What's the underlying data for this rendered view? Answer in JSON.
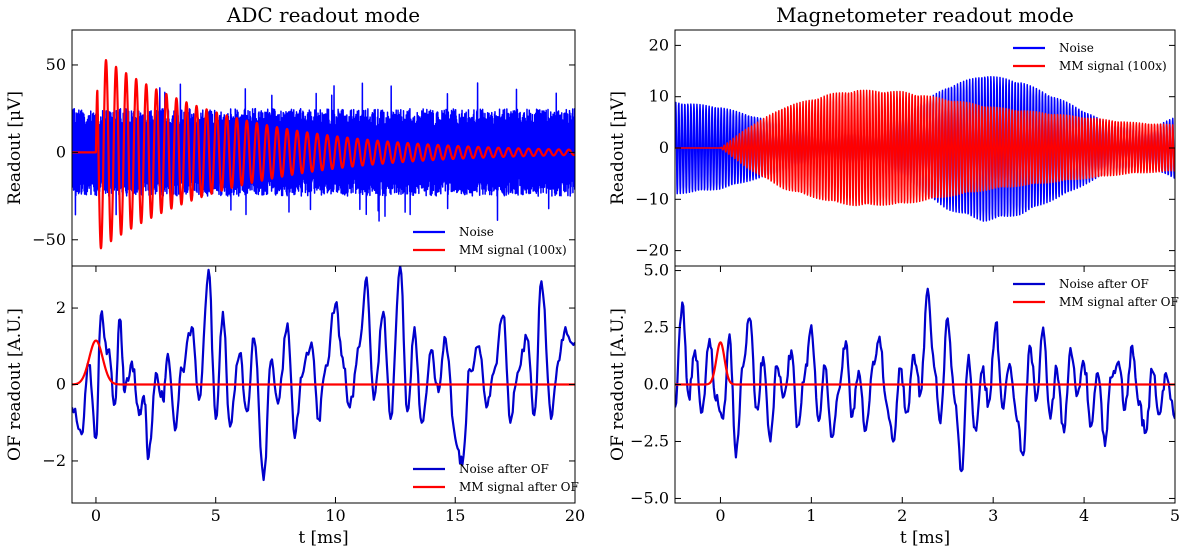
{
  "chart_data": [
    {
      "panel": "ADC top",
      "type": "line",
      "title": "ADC readout mode",
      "xlabel": "",
      "ylabel": "Readout [μV]",
      "xlim": [
        -1,
        20
      ],
      "ylim": [
        -65,
        70
      ],
      "yticks": [
        -50,
        0,
        50
      ],
      "ytick_labels": [
        "−50",
        "0",
        "50"
      ],
      "legend": "lower-right",
      "series": [
        {
          "name": "Noise",
          "color": "#0000ff",
          "kind": "noise",
          "amplitude": 25,
          "max_abs": 40,
          "x_range": [
            -1,
            20
          ]
        },
        {
          "name": "MM signal (100x)",
          "color": "#ff0000",
          "kind": "damped-sine",
          "onset": 0,
          "amplitude": 57,
          "period_ms": 0.42,
          "decay_ms": 5.5
        }
      ]
    },
    {
      "panel": "ADC bottom",
      "type": "line",
      "title": "",
      "xlabel": "t [ms]",
      "ylabel": "OF readout [A.U.]",
      "xlim": [
        -1,
        20
      ],
      "ylim": [
        -3.1,
        3.1
      ],
      "xticks": [
        0,
        5,
        10,
        15,
        20
      ],
      "xtick_labels": [
        "0",
        "5",
        "10",
        "15",
        "20"
      ],
      "yticks": [
        -2,
        0,
        2
      ],
      "ytick_labels": [
        "−2",
        "0",
        "2"
      ],
      "legend": "lower-right",
      "series": [
        {
          "name": "Noise after OF",
          "color": "#0000cc",
          "x": [
            -1.0,
            -0.6,
            -0.3,
            0.0,
            0.2,
            0.5,
            0.8,
            1.0,
            1.2,
            1.5,
            1.8,
            2.0,
            2.2,
            2.5,
            2.8,
            3.0,
            3.3,
            3.6,
            4.0,
            4.3,
            4.7,
            5.0,
            5.3,
            5.6,
            6.0,
            6.3,
            6.6,
            7.0,
            7.3,
            7.6,
            8.0,
            8.3,
            8.6,
            9.0,
            9.3,
            9.6,
            10.0,
            10.3,
            10.6,
            11.0,
            11.3,
            11.6,
            12.0,
            12.3,
            12.7,
            13.0,
            13.3,
            13.6,
            14.0,
            14.3,
            14.6,
            15.0,
            15.3,
            15.6,
            16.0,
            16.3,
            16.6,
            17.0,
            17.3,
            17.6,
            18.0,
            18.3,
            18.6,
            19.0,
            19.3,
            19.6,
            20.0
          ],
          "y": [
            -0.6,
            -1.3,
            0.5,
            -1.4,
            1.8,
            0.9,
            -0.5,
            1.7,
            -0.2,
            0.6,
            -0.8,
            -0.3,
            -1.9,
            0.3,
            -0.4,
            0.8,
            -1.2,
            0.4,
            1.5,
            -0.4,
            3.0,
            -0.9,
            1.9,
            -1.1,
            0.8,
            -0.7,
            1.2,
            -2.5,
            0.6,
            -0.5,
            1.6,
            -1.4,
            0.2,
            1.1,
            -0.9,
            0.5,
            2.1,
            0.7,
            -0.6,
            1.0,
            2.8,
            -0.4,
            1.9,
            -0.9,
            3.1,
            -0.7,
            1.5,
            -1.0,
            0.9,
            -0.2,
            1.2,
            -1.4,
            -2.1,
            0.4,
            1.0,
            -0.6,
            0.3,
            1.8,
            -1.0,
            0.3,
            1.2,
            -0.8,
            2.7,
            -0.9,
            0.6,
            1.5,
            1.1
          ]
        },
        {
          "name": "MM signal after OF",
          "color": "#ff0000",
          "kind": "gaussian",
          "center": 0.0,
          "peak": 1.15,
          "sigma_ms": 0.28
        }
      ]
    },
    {
      "panel": "Magnetometer top",
      "type": "line",
      "title": "Magnetometer readout mode",
      "xlabel": "",
      "ylabel": "Readout [μV]",
      "xlim": [
        -0.5,
        5
      ],
      "ylim": [
        -23,
        23
      ],
      "yticks": [
        -20,
        -10,
        0,
        10,
        20
      ],
      "ytick_labels": [
        "−20",
        "−10",
        "0",
        "10",
        "20"
      ],
      "legend": "top-right",
      "series": [
        {
          "name": "Noise",
          "color": "#0000ff",
          "kind": "beat-envelope",
          "envelope_x": [
            -0.5,
            0.0,
            0.5,
            1.0,
            1.5,
            2.0,
            2.5,
            2.9,
            3.3,
            3.8,
            4.3,
            4.7,
            5.0
          ],
          "envelope_y": [
            9,
            8,
            5.5,
            3.5,
            3.5,
            6.5,
            12,
            14.3,
            13,
            9,
            4.5,
            3.5,
            6
          ],
          "cycles_per_ms": 30
        },
        {
          "name": "MM signal (100x)",
          "color": "#ff0000",
          "kind": "beat-envelope",
          "onset": 0.0,
          "envelope_x": [
            0.0,
            0.3,
            0.7,
            1.2,
            1.5,
            2.0,
            2.5,
            3.0,
            3.5,
            4.0,
            4.5,
            5.0
          ],
          "envelope_y": [
            0,
            4,
            8,
            10.5,
            11.3,
            11,
            9.5,
            8,
            7,
            6,
            5,
            4.5
          ],
          "cycles_per_ms": 30
        }
      ]
    },
    {
      "panel": "Magnetometer bottom",
      "type": "line",
      "title": "",
      "xlabel": "t [ms]",
      "ylabel": "OF readout [A.U.]",
      "xlim": [
        -0.5,
        5
      ],
      "ylim": [
        -5.2,
        5.2
      ],
      "xticks": [
        0,
        1,
        2,
        3,
        4,
        5
      ],
      "xtick_labels": [
        "0",
        "1",
        "2",
        "3",
        "4",
        "5"
      ],
      "yticks": [
        -5.0,
        -2.5,
        0.0,
        2.5,
        5.0
      ],
      "ytick_labels": [
        "−5.0",
        "−2.5",
        "0.0",
        "2.5",
        "5.0"
      ],
      "legend": "top-right",
      "series": [
        {
          "name": "Noise after OF",
          "color": "#0000cc",
          "x": [
            -0.5,
            -0.42,
            -0.35,
            -0.28,
            -0.2,
            -0.12,
            -0.05,
            0.03,
            0.1,
            0.17,
            0.25,
            0.32,
            0.4,
            0.47,
            0.55,
            0.62,
            0.7,
            0.78,
            0.85,
            0.93,
            1.0,
            1.08,
            1.15,
            1.23,
            1.3,
            1.38,
            1.45,
            1.52,
            1.6,
            1.68,
            1.75,
            1.83,
            1.9,
            1.98,
            2.05,
            2.13,
            2.2,
            2.28,
            2.35,
            2.42,
            2.5,
            2.58,
            2.65,
            2.73,
            2.8,
            2.88,
            2.95,
            3.03,
            3.1,
            3.18,
            3.25,
            3.33,
            3.4,
            3.48,
            3.55,
            3.63,
            3.7,
            3.78,
            3.85,
            3.93,
            4.0,
            4.08,
            4.15,
            4.23,
            4.3,
            4.38,
            4.45,
            4.53,
            4.6,
            4.68,
            4.75,
            4.83,
            4.9,
            5.0
          ],
          "y": [
            -1.0,
            3.6,
            -0.5,
            1.5,
            -1.2,
            2.0,
            -0.7,
            -1.5,
            2.2,
            -3.2,
            0.8,
            2.9,
            -1.0,
            1.2,
            -2.5,
            0.8,
            -0.5,
            1.5,
            -1.8,
            0.5,
            2.6,
            -1.6,
            0.8,
            -2.3,
            -0.3,
            1.9,
            -1.4,
            0.6,
            -2.0,
            1.0,
            2.1,
            -0.9,
            -2.5,
            0.7,
            -1.2,
            1.3,
            -0.4,
            4.2,
            0.8,
            -1.7,
            2.9,
            -0.8,
            -3.8,
            1.3,
            -1.9,
            0.6,
            -0.8,
            2.7,
            -1.0,
            0.9,
            -1.3,
            -3.1,
            1.7,
            -0.6,
            2.5,
            -1.5,
            0.7,
            -2.1,
            1.6,
            -0.4,
            0.9,
            -1.8,
            0.5,
            -2.7,
            0.3,
            1.0,
            -1.1,
            1.7,
            -0.9,
            -2.1,
            0.6,
            -1.3,
            0.5,
            -1.5
          ]
        },
        {
          "name": "MM signal after OF",
          "color": "#ff0000",
          "kind": "gaussian",
          "center": 0.0,
          "peak": 1.85,
          "sigma_ms": 0.045
        }
      ]
    }
  ]
}
